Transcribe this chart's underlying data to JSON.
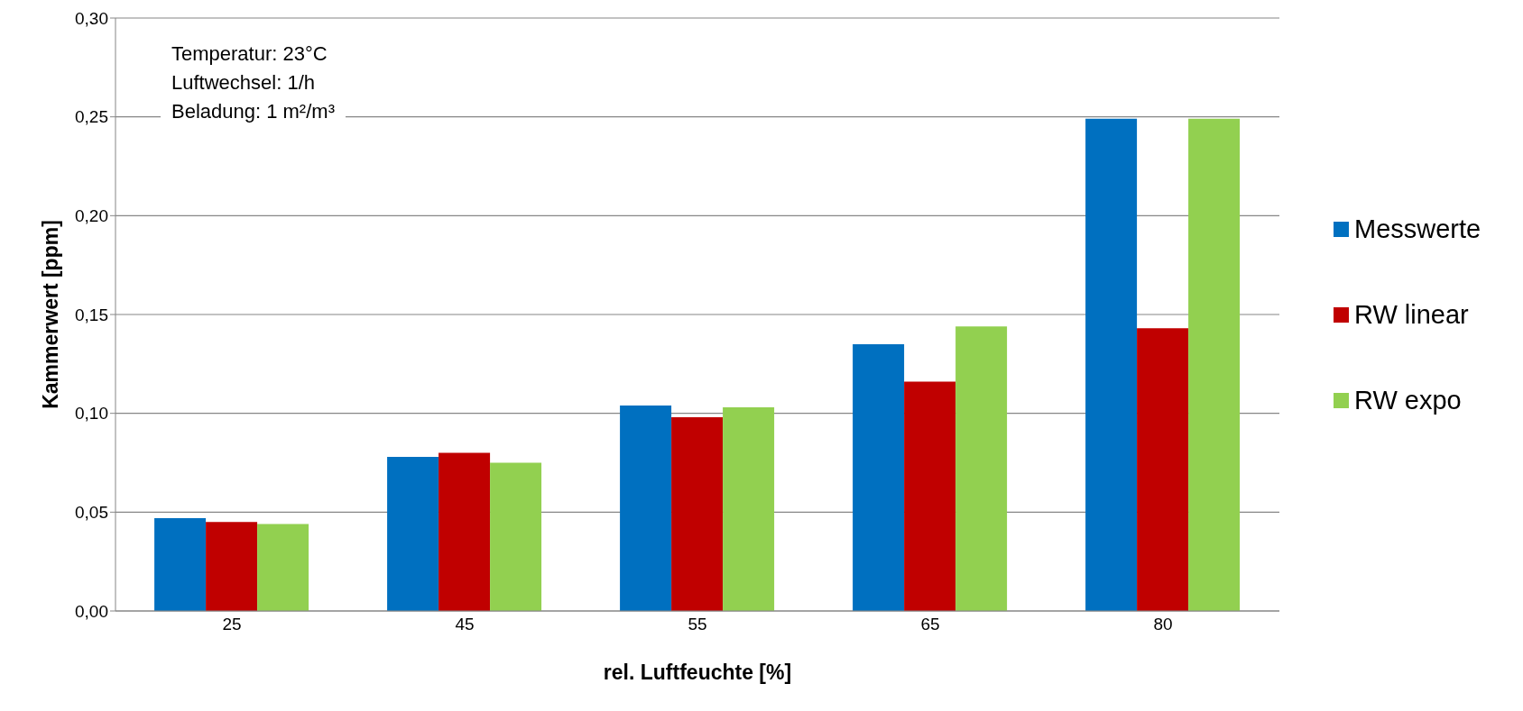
{
  "chart_data": {
    "type": "bar",
    "xlabel": "rel. Luftfeuchte [%]",
    "ylabel": "Kammerwert [ppm]",
    "categories": [
      "25",
      "45",
      "55",
      "65",
      "80"
    ],
    "series": [
      {
        "name": "Messwerte",
        "color": "#0070c0",
        "values": [
          0.047,
          0.078,
          0.104,
          0.135,
          0.249
        ]
      },
      {
        "name": "RW linear",
        "color": "#c00000",
        "values": [
          0.045,
          0.08,
          0.098,
          0.116,
          0.143
        ]
      },
      {
        "name": "RW expo",
        "color": "#92d050",
        "values": [
          0.044,
          0.075,
          0.103,
          0.144,
          0.249
        ]
      }
    ],
    "ylim": [
      0,
      0.3
    ],
    "yticks": [
      {
        "value": 0,
        "label": "0,00"
      },
      {
        "value": 0.05,
        "label": "0,05"
      },
      {
        "value": 0.1,
        "label": "0,10"
      },
      {
        "value": 0.15,
        "label": "0,15"
      },
      {
        "value": 0.2,
        "label": "0,20"
      },
      {
        "value": 0.25,
        "label": "0,25"
      },
      {
        "value": 0.3,
        "label": "0,30"
      }
    ],
    "grid": "y",
    "legend": "right",
    "annotations": [
      "Temperatur: 23°C",
      "Luftwechsel: 1/h",
      "Beladung: 1 m²/m³"
    ]
  }
}
